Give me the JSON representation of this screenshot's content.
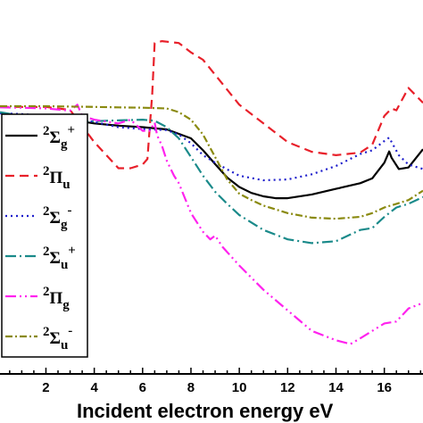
{
  "chart_data": {
    "type": "line",
    "xlabel": "Incident electron energy eV",
    "ylabel": "",
    "xlim": [
      0.1,
      17.6
    ],
    "ylim": [
      0,
      1
    ],
    "x_ticks": [
      2,
      4,
      6,
      8,
      10,
      12,
      14,
      16
    ],
    "grid": false,
    "legend_placement": "left",
    "series": [
      {
        "name": "2Σg+",
        "legend": {
          "sup": "2",
          "sym": "Σ",
          "sub": "g",
          "post": "+"
        },
        "color": "#000000",
        "dash": "solid",
        "x": [
          0.1,
          1,
          2,
          3,
          4,
          5,
          6,
          7,
          8,
          8.5,
          9,
          9.5,
          10,
          10.5,
          11,
          11.5,
          12,
          13,
          14,
          15,
          15.5,
          16,
          16.2,
          16.3,
          16.6,
          17,
          17.6
        ],
        "y": [
          0.698,
          0.69,
          0.682,
          0.68,
          0.67,
          0.664,
          0.66,
          0.654,
          0.63,
          0.598,
          0.561,
          0.525,
          0.5,
          0.484,
          0.475,
          0.47,
          0.47,
          0.48,
          0.495,
          0.51,
          0.523,
          0.565,
          0.595,
          0.578,
          0.548,
          0.552,
          0.601
        ]
      },
      {
        "name": "2Πu",
        "legend": {
          "sup": "2",
          "sym": "Π",
          "sub": "u",
          "post": ""
        },
        "color": "#e8202a",
        "dash": "10,6",
        "x": [
          0.1,
          1,
          2,
          3,
          4,
          5,
          5.5,
          6,
          6.2,
          6.4,
          6.5,
          6.8,
          7.5,
          8,
          8.5,
          9,
          10,
          11,
          12,
          13,
          14,
          15,
          15.5,
          16,
          16.3,
          16.5,
          17,
          17.6
        ],
        "y": [
          0.714,
          0.714,
          0.714,
          0.706,
          0.62,
          0.55,
          0.55,
          0.56,
          0.575,
          0.75,
          0.885,
          0.89,
          0.885,
          0.86,
          0.84,
          0.8,
          0.72,
          0.67,
          0.62,
          0.594,
          0.585,
          0.592,
          0.613,
          0.69,
          0.71,
          0.705,
          0.765,
          0.725
        ]
      },
      {
        "name": "2Σg-",
        "legend": {
          "sup": "2",
          "sym": "Σ",
          "sub": "g",
          "post": "-"
        },
        "color": "#1f1fcc",
        "dash": "2,4",
        "x": [
          0.1,
          1,
          2,
          3,
          4,
          5,
          6,
          7,
          7.5,
          8,
          8.5,
          9,
          9.5,
          10,
          11,
          12,
          13,
          14,
          15,
          15.5,
          16,
          16.2,
          16.6,
          17,
          17.6
        ],
        "y": [
          0.697,
          0.695,
          0.69,
          0.684,
          0.674,
          0.66,
          0.655,
          0.652,
          0.64,
          0.617,
          0.585,
          0.565,
          0.547,
          0.53,
          0.518,
          0.52,
          0.534,
          0.556,
          0.588,
          0.598,
          0.623,
          0.632,
          0.585,
          0.56,
          0.548
        ]
      },
      {
        "name": "2Σu+",
        "legend": {
          "sup": "2",
          "sym": "Σ",
          "sub": "u",
          "post": "+"
        },
        "color": "#1a8a8a",
        "dash": "12,4,2,4",
        "x": [
          0.1,
          1,
          2,
          3,
          4,
          5,
          6,
          6.5,
          7,
          7.5,
          8,
          8.5,
          9,
          9.5,
          10,
          11,
          12,
          13,
          14,
          15,
          15.5,
          16,
          16.5,
          17,
          17.6
        ],
        "y": [
          0.7,
          0.69,
          0.68,
          0.672,
          0.676,
          0.678,
          0.68,
          0.677,
          0.66,
          0.63,
          0.58,
          0.53,
          0.487,
          0.455,
          0.425,
          0.385,
          0.36,
          0.35,
          0.355,
          0.385,
          0.39,
          0.42,
          0.445,
          0.455,
          0.473
        ]
      },
      {
        "name": "2Πg",
        "legend": {
          "sup": "2",
          "sym": "Π",
          "sub": "g",
          "post": ""
        },
        "color": "#ff22ee",
        "dash": "12,4,2,4,2,4",
        "x": [
          0.1,
          1,
          2,
          3,
          3.3,
          3.5,
          4,
          5,
          5.5,
          6,
          6.3,
          6.5,
          6.6,
          6.8,
          7,
          7.3,
          7.5,
          8,
          8.5,
          8.8,
          9,
          9.3,
          10,
          11,
          12,
          13,
          14,
          14.6,
          15,
          16,
          16.5,
          17,
          17.6
        ],
        "y": [
          0.713,
          0.712,
          0.71,
          0.704,
          0.72,
          0.69,
          0.68,
          0.67,
          0.68,
          0.65,
          0.65,
          0.672,
          0.638,
          0.61,
          0.57,
          0.53,
          0.51,
          0.43,
          0.38,
          0.36,
          0.37,
          0.34,
          0.29,
          0.225,
          0.17,
          0.115,
          0.09,
          0.08,
          0.095,
          0.135,
          0.14,
          0.175,
          0.19
        ]
      },
      {
        "name": "2Σu-",
        "legend": {
          "sup": "2",
          "sym": "Σ",
          "sub": "u",
          "post": "-"
        },
        "color": "#8a8a10",
        "dash": "8,3,2,3",
        "x": [
          0.1,
          1,
          2,
          3,
          4,
          5,
          6,
          7,
          7.5,
          8,
          8.5,
          9,
          9.5,
          10,
          10.5,
          11,
          12,
          13,
          14,
          15,
          15.5,
          16,
          16.5,
          17,
          17.6
        ],
        "y": [
          0.716,
          0.716,
          0.716,
          0.715,
          0.714,
          0.713,
          0.712,
          0.71,
          0.7,
          0.68,
          0.64,
          0.58,
          0.52,
          0.482,
          0.465,
          0.45,
          0.43,
          0.418,
          0.415,
          0.42,
          0.43,
          0.445,
          0.455,
          0.465,
          0.49
        ]
      }
    ]
  }
}
